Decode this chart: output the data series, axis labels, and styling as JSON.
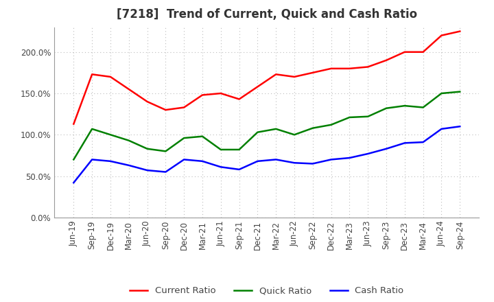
{
  "title": "[7218]  Trend of Current, Quick and Cash Ratio",
  "labels": [
    "Jun-19",
    "Sep-19",
    "Dec-19",
    "Mar-20",
    "Jun-20",
    "Sep-20",
    "Dec-20",
    "Mar-21",
    "Jun-21",
    "Sep-21",
    "Dec-21",
    "Mar-22",
    "Jun-22",
    "Sep-22",
    "Dec-22",
    "Mar-23",
    "Jun-23",
    "Sep-23",
    "Dec-23",
    "Mar-24",
    "Jun-24",
    "Sep-24"
  ],
  "current_ratio": [
    113,
    173,
    170,
    155,
    140,
    130,
    133,
    148,
    150,
    143,
    158,
    173,
    170,
    175,
    180,
    180,
    182,
    190,
    200,
    200,
    220,
    225
  ],
  "quick_ratio": [
    70,
    107,
    100,
    93,
    83,
    80,
    96,
    98,
    82,
    82,
    103,
    107,
    100,
    108,
    112,
    121,
    122,
    132,
    135,
    133,
    150,
    152
  ],
  "cash_ratio": [
    42,
    70,
    68,
    63,
    57,
    55,
    70,
    68,
    61,
    58,
    68,
    70,
    66,
    65,
    70,
    72,
    77,
    83,
    90,
    91,
    107,
    110
  ],
  "ylim": [
    0,
    230
  ],
  "yticks": [
    0,
    50,
    100,
    150,
    200
  ],
  "current_color": "#ff0000",
  "quick_color": "#008000",
  "cash_color": "#0000ff",
  "line_width": 1.8,
  "background_color": "#ffffff",
  "grid_color": "#bbbbbb",
  "title_fontsize": 12,
  "title_color": "#333333",
  "legend_fontsize": 9.5,
  "tick_fontsize": 8.5,
  "tick_color": "#444444"
}
